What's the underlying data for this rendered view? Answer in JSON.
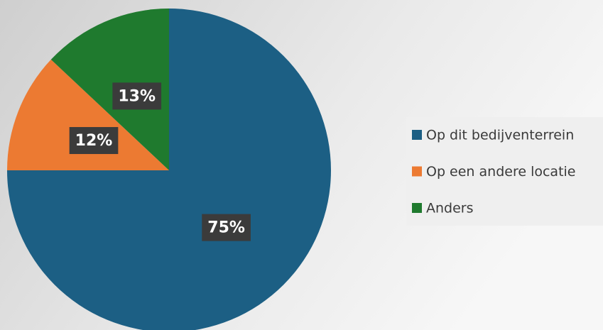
{
  "chart_data": {
    "type": "pie",
    "categories": [
      "Op dit bedijventerrein",
      "Op een andere locatie",
      "Anders"
    ],
    "values": [
      75,
      12,
      13
    ],
    "value_labels": [
      "75%",
      "12%",
      "13%"
    ],
    "colors": [
      "#1c5f84",
      "#ec7a32",
      "#1f7a2e"
    ],
    "legend": "right"
  }
}
